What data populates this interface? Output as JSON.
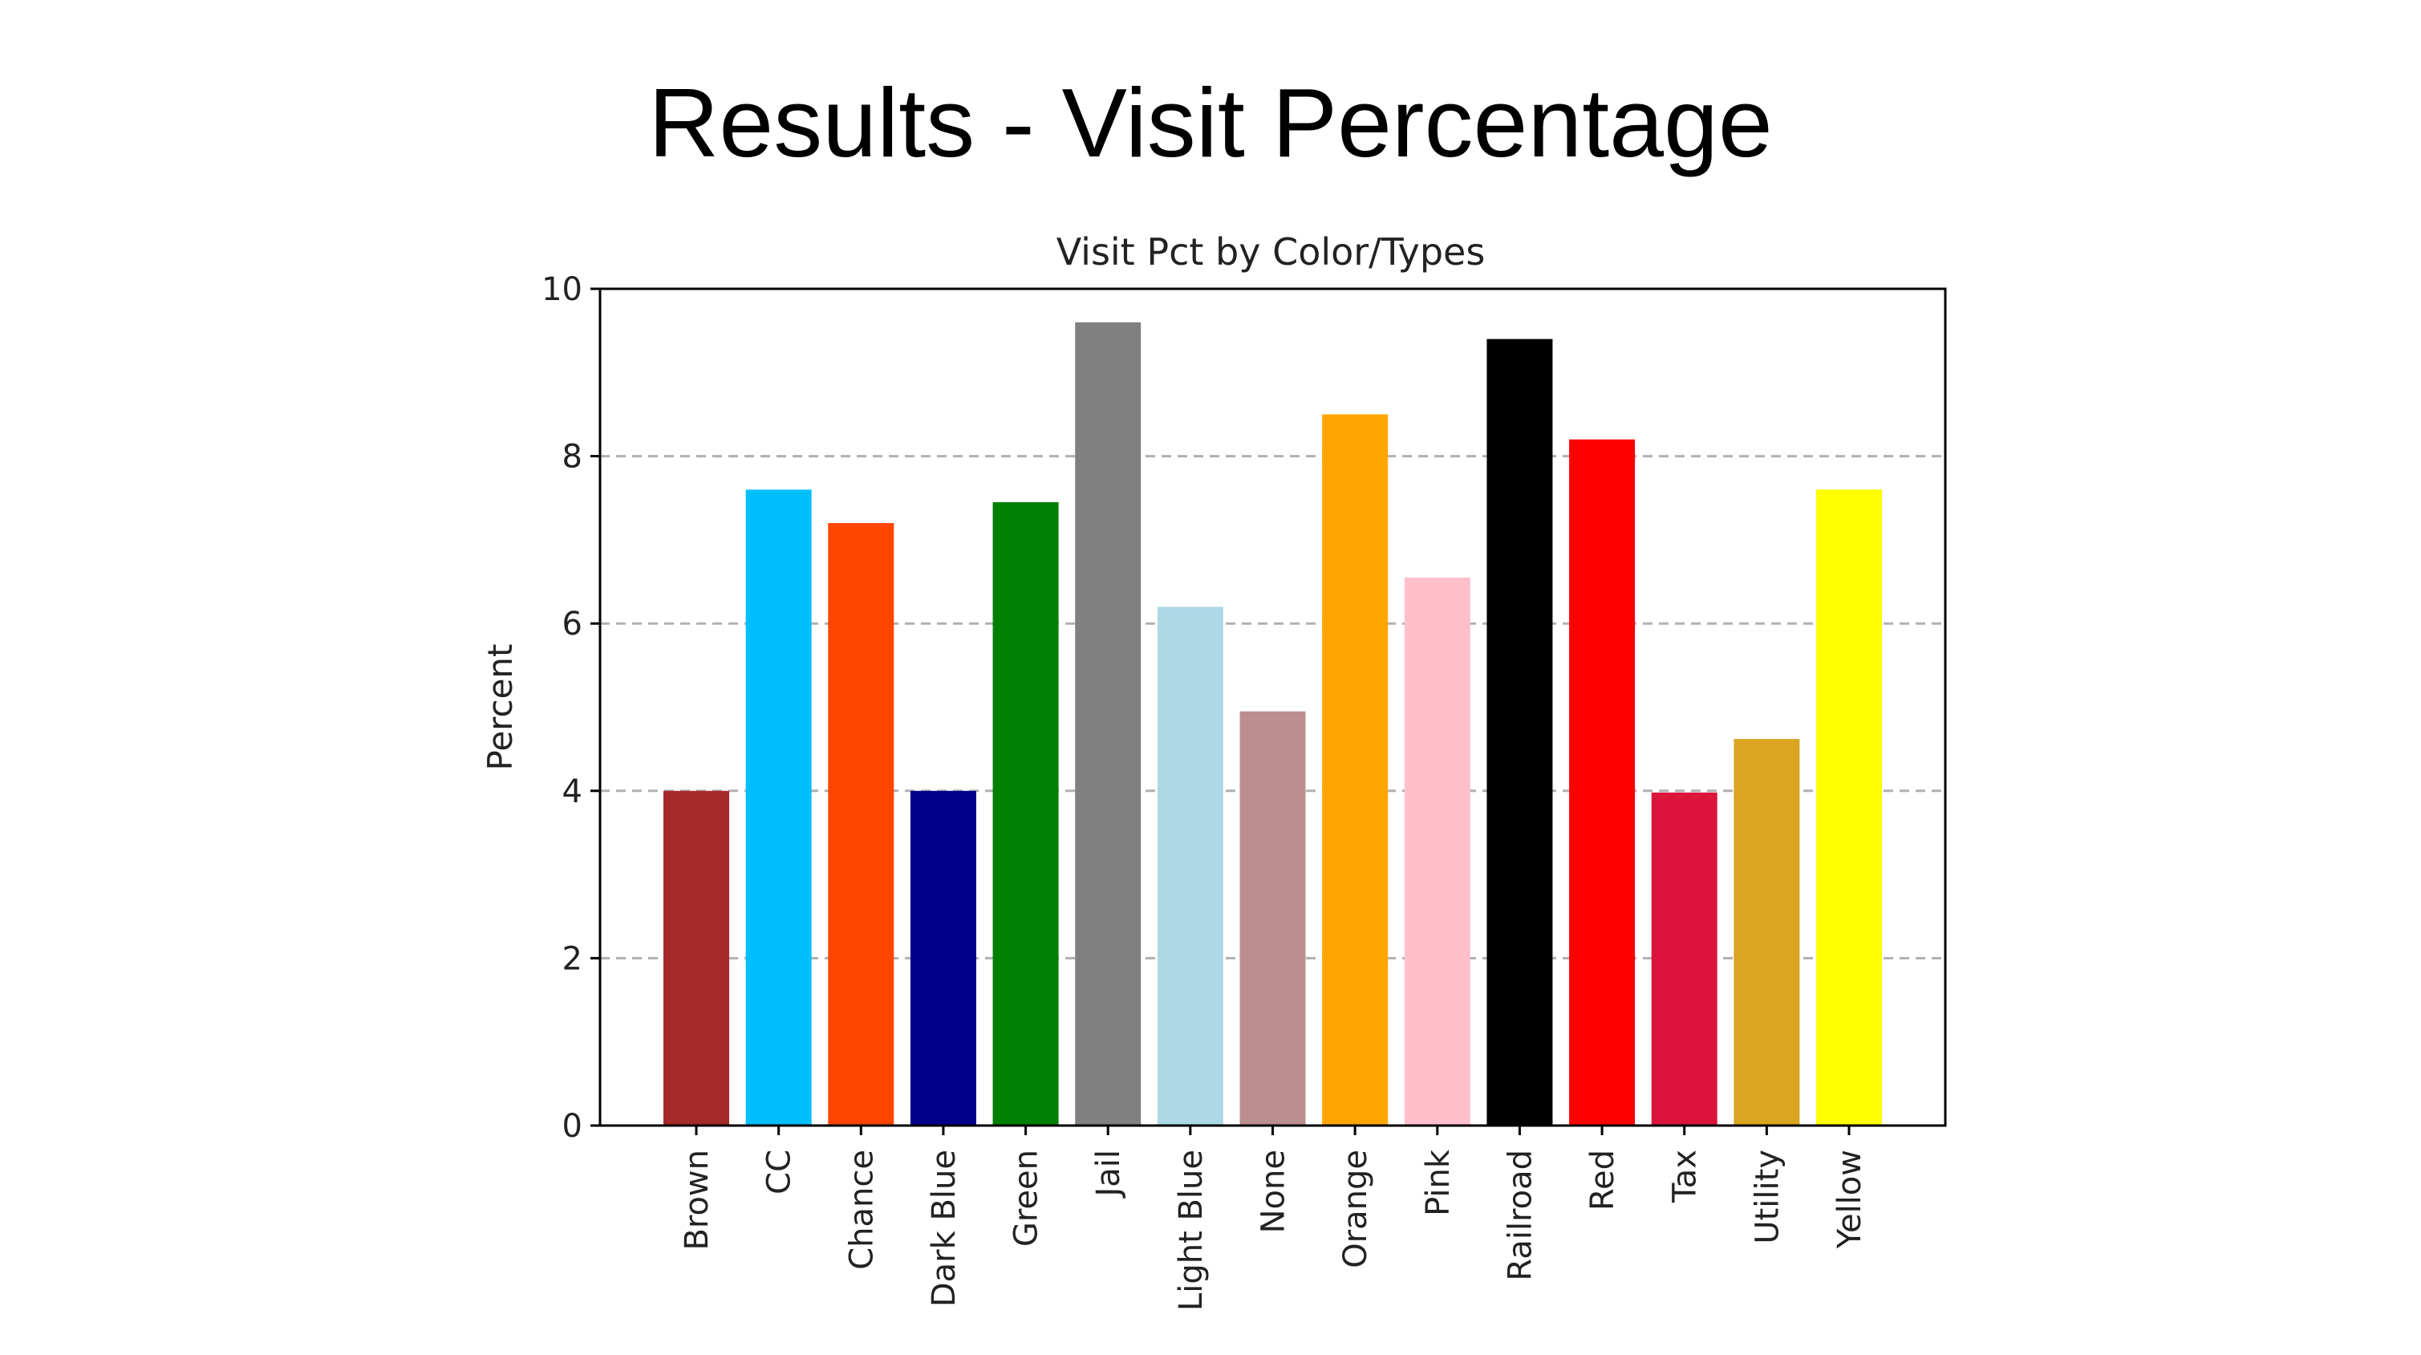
{
  "slide": {
    "title": "Results - Visit Percentage"
  },
  "chart_data": {
    "type": "bar",
    "title": "Visit Pct by Color/Types",
    "xlabel": "",
    "ylabel": "Percent",
    "ylim": [
      0,
      10
    ],
    "yticks": [
      0,
      2,
      4,
      6,
      8,
      10
    ],
    "grid": "y-dashed",
    "categories": [
      "Brown",
      "CC",
      "Chance",
      "Dark Blue",
      "Green",
      "Jail",
      "Light Blue",
      "None",
      "Orange",
      "Pink",
      "Railroad",
      "Red",
      "Tax",
      "Utility",
      "Yellow"
    ],
    "values": [
      4.0,
      7.6,
      7.2,
      4.0,
      7.45,
      9.6,
      6.2,
      4.95,
      8.5,
      6.55,
      9.4,
      8.2,
      3.98,
      4.62,
      7.6
    ],
    "colors": [
      "#A52A2A",
      "#00BFFF",
      "#FF4500",
      "#00008B",
      "#008000",
      "#808080",
      "#ADD8E6",
      "#BC8F8F",
      "#FFA500",
      "#FFC0CB",
      "#000000",
      "#FF0000",
      "#DC143C",
      "#DAA520",
      "#FFFF00"
    ]
  }
}
